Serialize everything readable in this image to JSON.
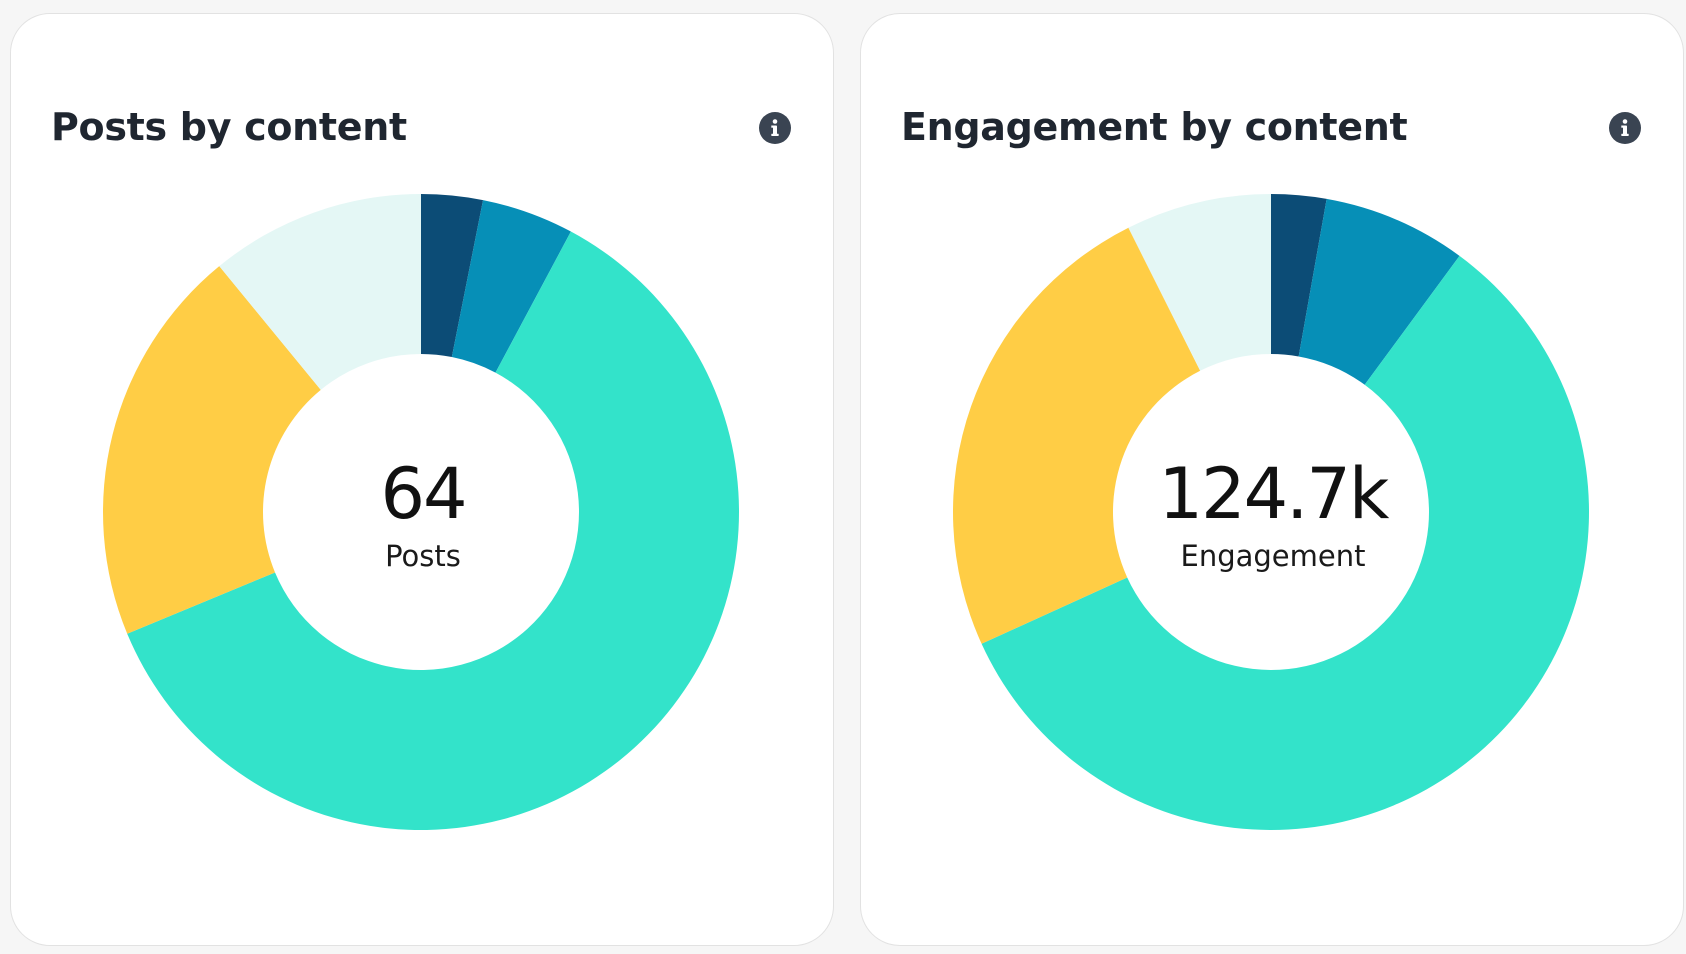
{
  "colors": {
    "page_background": "#f6f6f6",
    "card_background": "#ffffff",
    "title_text": "#1f2630",
    "info_icon": "#3a4452",
    "series": [
      "#0c4c76",
      "#068fb7",
      "#33e3ca",
      "#ffcd45",
      "#e4f7f5"
    ]
  },
  "cards": [
    {
      "title": "Posts by content",
      "info_icon": "info-icon",
      "center_value": "64",
      "center_label": "Posts"
    },
    {
      "title": "Engagement by content",
      "info_icon": "info-icon",
      "center_value": "124.7k",
      "center_label": "Engagement"
    }
  ],
  "chart_data": [
    {
      "type": "pie",
      "variant": "donut",
      "title": "Posts by content",
      "total": 64,
      "total_label": "Posts",
      "legend": "none",
      "slices": [
        {
          "value": 2
        },
        {
          "value": 3
        },
        {
          "value": 39
        },
        {
          "value": 13
        },
        {
          "value": 7
        }
      ]
    },
    {
      "type": "pie",
      "variant": "donut",
      "title": "Engagement by content",
      "total": 124700,
      "total_label": "Engagement",
      "legend": "none",
      "slices": [
        {
          "value": 2.8
        },
        {
          "value": 7.3
        },
        {
          "value": 58.1
        },
        {
          "value": 24.4
        },
        {
          "value": 7.4
        }
      ]
    }
  ]
}
